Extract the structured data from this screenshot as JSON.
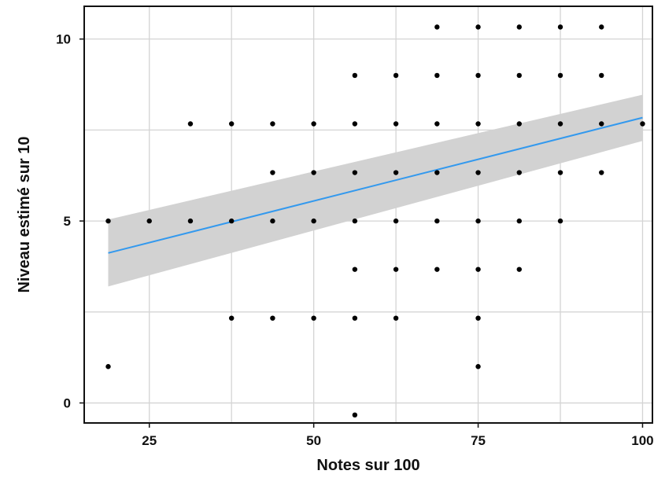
{
  "chart_data": {
    "type": "scatter",
    "xlabel": "Notes sur 100",
    "ylabel": "Niveau estimé sur 10",
    "xlim": [
      15.1,
      101.5
    ],
    "ylim": [
      -0.55,
      10.9
    ],
    "x_ticks": [
      25,
      50,
      75,
      100
    ],
    "x_tick_labels": [
      "25",
      "50",
      "75",
      "100"
    ],
    "y_ticks": [
      0,
      5,
      10
    ],
    "y_tick_labels": [
      "0",
      "5",
      "10"
    ],
    "grid": true,
    "legend": "none",
    "points": [
      {
        "x": 18.75,
        "y": 1.0
      },
      {
        "x": 18.75,
        "y": 5.0
      },
      {
        "x": 25.0,
        "y": 5.0
      },
      {
        "x": 31.25,
        "y": 5.0
      },
      {
        "x": 31.25,
        "y": 7.67
      },
      {
        "x": 37.5,
        "y": 2.33
      },
      {
        "x": 37.5,
        "y": 5.0
      },
      {
        "x": 37.5,
        "y": 7.67
      },
      {
        "x": 43.75,
        "y": 2.33
      },
      {
        "x": 43.75,
        "y": 5.0
      },
      {
        "x": 43.75,
        "y": 6.33
      },
      {
        "x": 43.75,
        "y": 7.67
      },
      {
        "x": 50.0,
        "y": 2.33
      },
      {
        "x": 50.0,
        "y": 5.0
      },
      {
        "x": 50.0,
        "y": 6.33
      },
      {
        "x": 50.0,
        "y": 7.67
      },
      {
        "x": 56.25,
        "y": -0.33
      },
      {
        "x": 56.25,
        "y": 2.33
      },
      {
        "x": 56.25,
        "y": 3.67
      },
      {
        "x": 56.25,
        "y": 5.0
      },
      {
        "x": 56.25,
        "y": 6.33
      },
      {
        "x": 56.25,
        "y": 7.67
      },
      {
        "x": 56.25,
        "y": 9.0
      },
      {
        "x": 62.5,
        "y": 2.33
      },
      {
        "x": 62.5,
        "y": 3.67
      },
      {
        "x": 62.5,
        "y": 5.0
      },
      {
        "x": 62.5,
        "y": 6.33
      },
      {
        "x": 62.5,
        "y": 7.67
      },
      {
        "x": 62.5,
        "y": 9.0
      },
      {
        "x": 68.75,
        "y": 3.67
      },
      {
        "x": 68.75,
        "y": 5.0
      },
      {
        "x": 68.75,
        "y": 6.33
      },
      {
        "x": 68.75,
        "y": 7.67
      },
      {
        "x": 68.75,
        "y": 9.0
      },
      {
        "x": 68.75,
        "y": 10.33
      },
      {
        "x": 75.0,
        "y": 1.0
      },
      {
        "x": 75.0,
        "y": 2.33
      },
      {
        "x": 75.0,
        "y": 3.67
      },
      {
        "x": 75.0,
        "y": 5.0
      },
      {
        "x": 75.0,
        "y": 6.33
      },
      {
        "x": 75.0,
        "y": 7.67
      },
      {
        "x": 75.0,
        "y": 9.0
      },
      {
        "x": 75.0,
        "y": 10.33
      },
      {
        "x": 81.25,
        "y": 3.67
      },
      {
        "x": 81.25,
        "y": 5.0
      },
      {
        "x": 81.25,
        "y": 6.33
      },
      {
        "x": 81.25,
        "y": 7.67
      },
      {
        "x": 81.25,
        "y": 9.0
      },
      {
        "x": 81.25,
        "y": 10.33
      },
      {
        "x": 87.5,
        "y": 5.0
      },
      {
        "x": 87.5,
        "y": 6.33
      },
      {
        "x": 87.5,
        "y": 7.67
      },
      {
        "x": 87.5,
        "y": 9.0
      },
      {
        "x": 87.5,
        "y": 10.33
      },
      {
        "x": 93.75,
        "y": 6.33
      },
      {
        "x": 93.75,
        "y": 7.67
      },
      {
        "x": 93.75,
        "y": 9.0
      },
      {
        "x": 93.75,
        "y": 10.33
      },
      {
        "x": 100.0,
        "y": 7.67
      }
    ],
    "regression": {
      "x": [
        18.75,
        100.0
      ],
      "y": [
        4.12,
        7.84
      ],
      "ci_lower": [
        3.2,
        7.2
      ],
      "ci_upper": [
        5.04,
        8.47
      ],
      "line_color": "#3399ee",
      "band_color": "#d2d2d2"
    },
    "point_color": "#000000",
    "grid_color": "#d4d4d4",
    "frame_color": "#111111"
  }
}
